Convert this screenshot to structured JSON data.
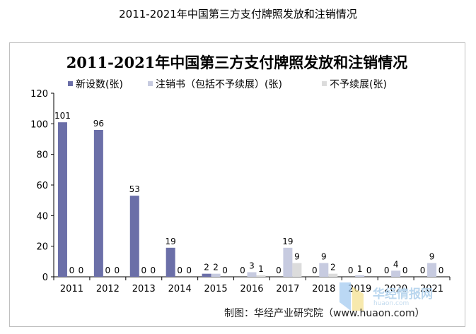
{
  "page_title": "2011-2021年中国第三方支付牌照发放和注销情况",
  "source_text": "制图：华经产业研究院（www.huaon.com）",
  "watermark": {
    "name": "华经情报网",
    "site": "huaon.com"
  },
  "colors": {
    "issued": "#6b6fa8",
    "cancelled": "#c7cbe0",
    "not_renewed": "#dcdcdc",
    "axis": "#000000",
    "frame": "#bfbfbf"
  },
  "chart_data": {
    "type": "bar",
    "title": "2011-2021年中国第三方支付牌照发放和注销情况",
    "xlabel": "",
    "ylabel": "",
    "ylim": [
      0,
      120
    ],
    "yticks": [
      0,
      20,
      40,
      60,
      80,
      100,
      120
    ],
    "grid": false,
    "legend_position": "top",
    "categories": [
      "2011",
      "2012",
      "2013",
      "2014",
      "2015",
      "2016",
      "2017",
      "2018",
      "2019",
      "2020",
      "2021"
    ],
    "series": [
      {
        "name": "新设数(张)",
        "color": "#6b6fa8",
        "values": [
          101,
          96,
          53,
          19,
          2,
          0,
          0,
          0,
          0,
          0,
          0
        ]
      },
      {
        "name": "注销书（包括不予续展）(张)",
        "color": "#c7cbe0",
        "values": [
          0,
          0,
          0,
          0,
          2,
          3,
          19,
          9,
          1,
          4,
          9
        ]
      },
      {
        "name": "不予续展(张)",
        "color": "#dcdcdc",
        "values": [
          0,
          0,
          0,
          0,
          0,
          1,
          9,
          2,
          0,
          0,
          0
        ]
      }
    ]
  }
}
